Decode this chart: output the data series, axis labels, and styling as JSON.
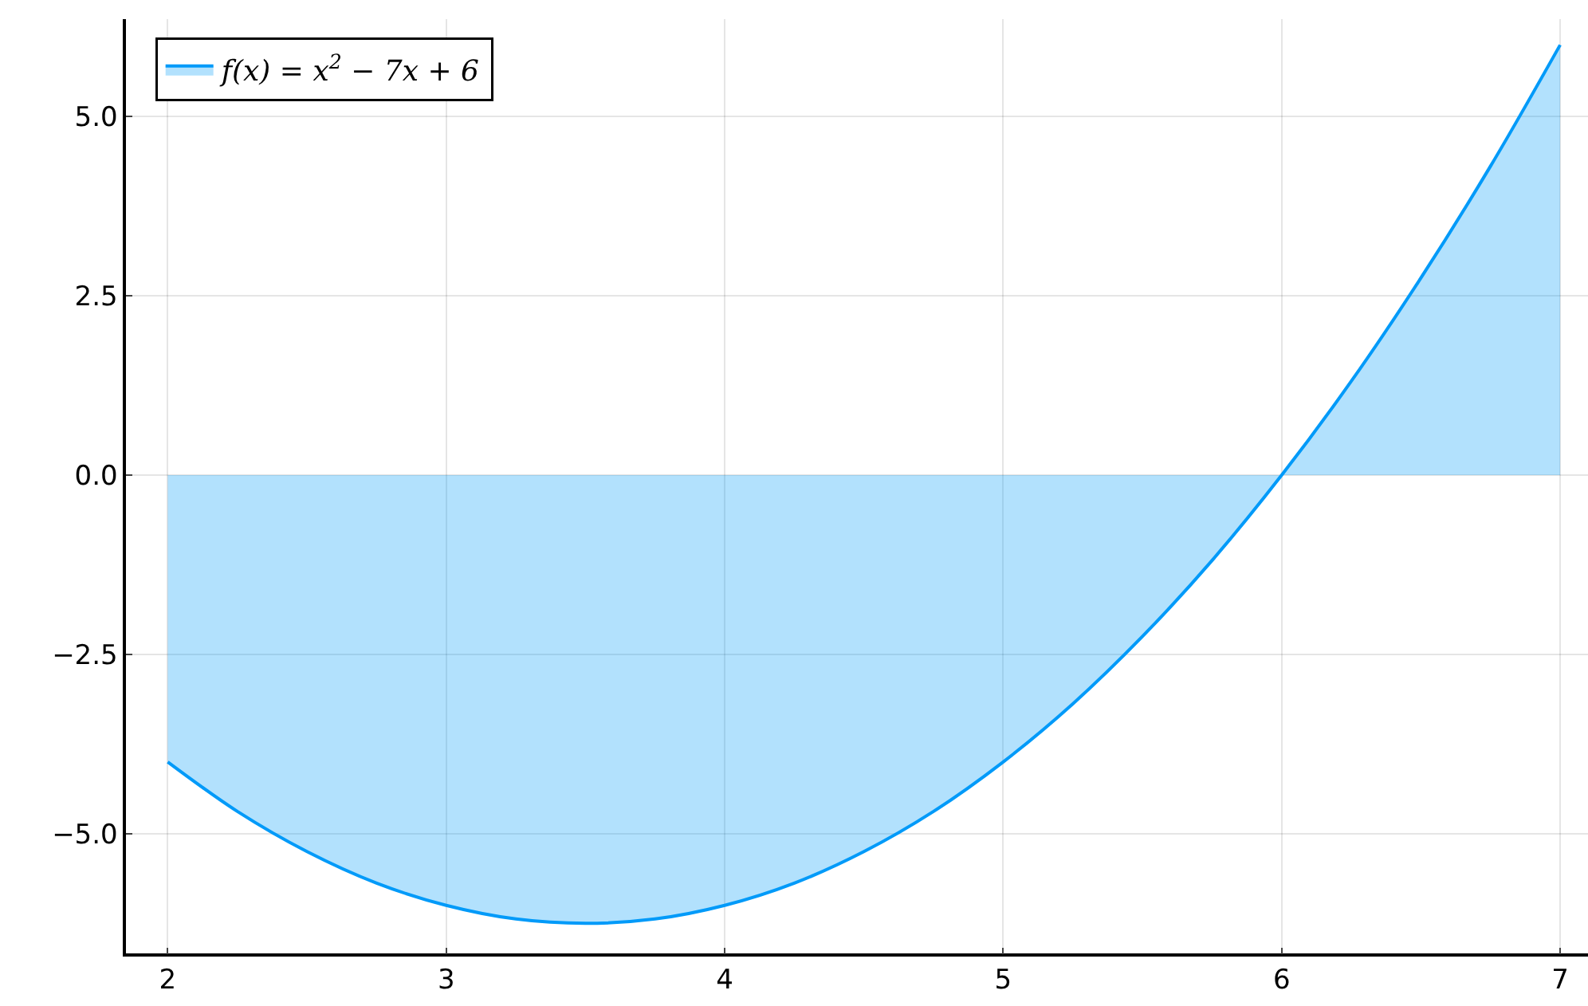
{
  "chart_data": {
    "type": "area",
    "x": [
      2,
      2.25,
      2.5,
      2.75,
      3,
      3.25,
      3.5,
      3.75,
      4,
      4.25,
      4.5,
      4.75,
      5,
      5.25,
      5.5,
      5.75,
      6,
      6.25,
      6.5,
      6.75,
      7
    ],
    "series": [
      {
        "name": "f(x) = x$^{2}$ − 7x + 6",
        "color": "#009af9",
        "values": [
          -4,
          -4.69,
          -5.25,
          -5.69,
          -6,
          -6.19,
          -6.25,
          -6.19,
          -6,
          -5.69,
          -5.25,
          -4.69,
          -4,
          -3.19,
          -2.25,
          -1.19,
          0,
          1.31,
          2.75,
          4.31,
          6
        ]
      }
    ],
    "xlim": [
      1.85,
      7.1
    ],
    "ylim": [
      -6.67,
      6.36
    ],
    "xticks": [
      2,
      3,
      4,
      5,
      6,
      7
    ],
    "yticks": [
      {
        "value": -5,
        "label": "−5.0"
      },
      {
        "value": -2.5,
        "label": "−2.5"
      },
      {
        "value": 0,
        "label": "0.0"
      },
      {
        "value": 2.5,
        "label": "2.5"
      },
      {
        "value": 5,
        "label": "5.0"
      }
    ],
    "grid": true,
    "legend": "top left"
  }
}
